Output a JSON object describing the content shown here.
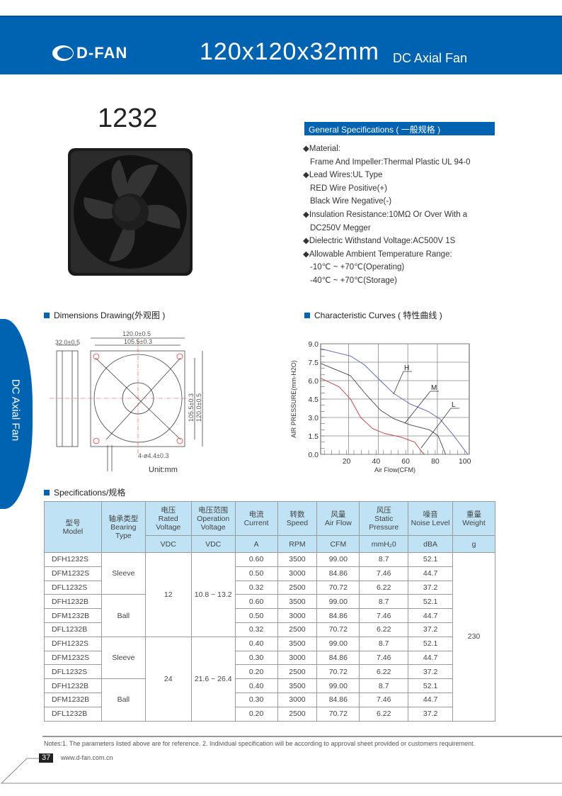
{
  "header": {
    "logo": "D-FAN",
    "size": "120x120x32mm",
    "subtitle": "DC Axial Fan",
    "brand_color": "#0063b1"
  },
  "model": "1232",
  "general": {
    "title": "General Specifications ( 一般规格 )",
    "lines": [
      {
        "bullet": true,
        "text": "Material:"
      },
      {
        "bullet": false,
        "text": "Frame And Impeller:Thermal Plastic UL 94-0"
      },
      {
        "bullet": true,
        "text": "Lead Wires:UL Type"
      },
      {
        "bullet": false,
        "text": "RED Wire Positive(+)"
      },
      {
        "bullet": false,
        "text": "Black Wire Negative(-)"
      },
      {
        "bullet": true,
        "text": "Insulation Resistance:10MΩ  Or Over With a"
      },
      {
        "bullet": false,
        "text": " DC250V Megger"
      },
      {
        "bullet": true,
        "text": "Dielectric Withstand Voltage:AC500V 1S"
      },
      {
        "bullet": true,
        "text": "Allowable Ambient Temperature Range:"
      },
      {
        "bullet": false,
        "text": "-10℃ ~ +70℃(Operating)"
      },
      {
        "bullet": false,
        "text": "-40℃ ~ +70℃(Storage)"
      }
    ]
  },
  "sections": {
    "dimensions": "Dimensions Drawing(外观图 )",
    "curves": "Characteristic Curves ( 特性曲线 )",
    "specs": "Specifications/规格"
  },
  "drawing": {
    "w1": "120.0±0.5",
    "w2": "105.5±0.3",
    "depth": "32.0±0.5",
    "h1": "105.5±0.3",
    "h2": "120.0±0.5",
    "holes": "4-ø4.4±0.3",
    "unit": "Unit:mm"
  },
  "side_tab": "DC Axial Fan",
  "chart_data": {
    "type": "line",
    "xlabel": "Air Flow(CFM)",
    "ylabel": "AIR PRESSURE(mm-H2O)",
    "xlim": [
      2.5,
      103
    ],
    "ylim": [
      0,
      9
    ],
    "xticks": [
      20,
      40,
      60,
      80,
      100
    ],
    "yticks": [
      "0.0",
      "1.5",
      "3.0",
      "4.5",
      "6.0",
      "7.5",
      "9.0"
    ],
    "grid": true,
    "series": [
      {
        "name": "H",
        "color": "#5a5fb0",
        "x": [
          2.5,
          22.7,
          32,
          42.9,
          52,
          63,
          75,
          83,
          92,
          102
        ],
        "y": [
          8.6,
          8.0,
          7.3,
          6.0,
          4.95,
          4.1,
          3.5,
          2.9,
          1.6,
          0
        ]
      },
      {
        "name": "M",
        "color": "#444444",
        "x": [
          2.5,
          22.7,
          33,
          42.9,
          52,
          63,
          76,
          82,
          87
        ],
        "y": [
          7.4,
          6.4,
          4.9,
          3.6,
          2.9,
          2.4,
          2.0,
          1.5,
          0
        ]
      },
      {
        "name": "L",
        "color": "#c0393e",
        "x": [
          2.5,
          15,
          22.7,
          29.6,
          37.6,
          45.6,
          56.8,
          66,
          71,
          72.7
        ],
        "y": [
          6.2,
          5.5,
          4.5,
          3.0,
          2.1,
          1.7,
          1.4,
          1.0,
          0.2,
          0
        ]
      }
    ]
  },
  "table": {
    "headers": [
      {
        "cn": "型号",
        "en": "Model"
      },
      {
        "cn": "轴承类型",
        "en": "Bearing Type"
      },
      {
        "cn": "电压",
        "en": "Rated Voltage"
      },
      {
        "cn": "电压范围",
        "en": "Operation Voltage"
      },
      {
        "cn": "电流",
        "en": "Current"
      },
      {
        "cn": "转数",
        "en": "Speed"
      },
      {
        "cn": "风量",
        "en": "Air Flow"
      },
      {
        "cn": "风压",
        "en": "Static Pressure"
      },
      {
        "cn": "噪音",
        "en": "Noise Level"
      },
      {
        "cn": "重量",
        "en": "Weight"
      }
    ],
    "units": [
      "VDC",
      "VDC",
      "A",
      "RPM",
      "CFM",
      "mmH₂0",
      "dBA",
      "g"
    ],
    "bearing": [
      "Sleeve",
      "Ball",
      "Sleeve",
      "Ball"
    ],
    "voltage": [
      {
        "rated": "12",
        "range": "10.8 ~ 13.2"
      },
      {
        "rated": "24",
        "range": "21.6 ~ 26.4"
      }
    ],
    "weight": "230",
    "rows": [
      [
        "DFH1232S",
        "0.60",
        "3500",
        "99.00",
        "8.7",
        "52.1"
      ],
      [
        "DFM1232S",
        "0.50",
        "3000",
        "84.86",
        "7.46",
        "44.7"
      ],
      [
        "DFL1232S",
        "0.32",
        "2500",
        "70.72",
        "6.22",
        "37.2"
      ],
      [
        "DFH1232B",
        "0.60",
        "3500",
        "99.00",
        "8.7",
        "52.1"
      ],
      [
        "DFM1232B",
        "0.50",
        "3000",
        "84.86",
        "7.46",
        "44.7"
      ],
      [
        "DFL1232B",
        "0.32",
        "2500",
        "70.72",
        "6.22",
        "37.2"
      ],
      [
        "DFH1232S",
        "0.40",
        "3500",
        "99.00",
        "8.7",
        "52.1"
      ],
      [
        "DFM1232S",
        "0.30",
        "3000",
        "84.86",
        "7.46",
        "44.7"
      ],
      [
        "DFL1232S",
        "0.20",
        "2500",
        "70.72",
        "6.22",
        "37.2"
      ],
      [
        "DFH1232B",
        "0.40",
        "3500",
        "99.00",
        "8.7",
        "52.1"
      ],
      [
        "DFM1232B",
        "0.30",
        "3000",
        "84.86",
        "7.46",
        "44.7"
      ],
      [
        "DFL1232B",
        "0.20",
        "2500",
        "70.72",
        "6.22",
        "37.2"
      ]
    ]
  },
  "footer": {
    "notes": "Notes:1. The parameters listed above are for reference.   2. Individual specification will be according to approval sheet provided or customers requirement.",
    "page": "37",
    "website": "www.d-fan.com.cn"
  }
}
